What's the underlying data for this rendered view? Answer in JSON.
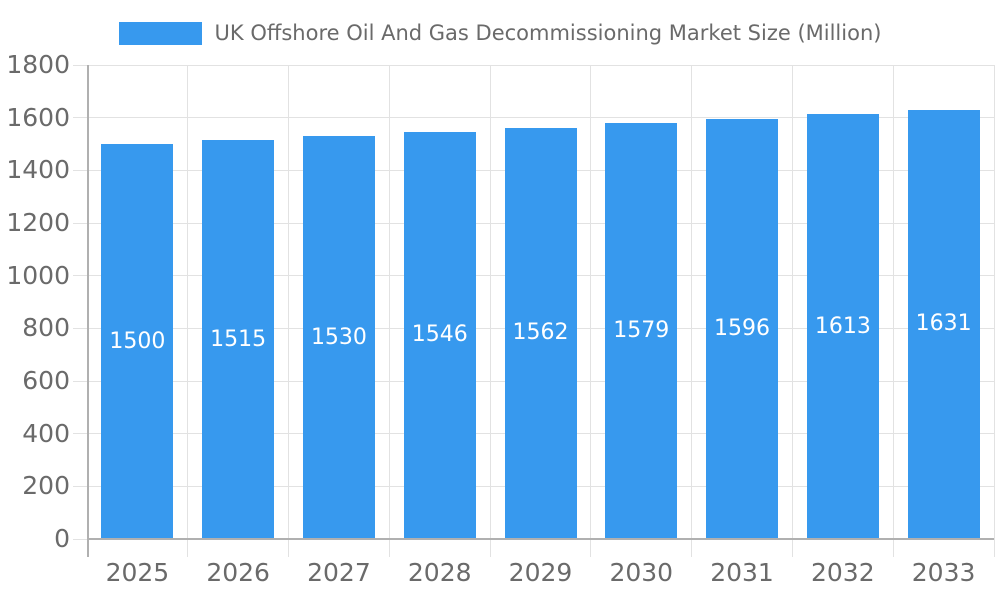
{
  "chart_data": {
    "type": "bar",
    "title": "UK Offshore Oil And Gas Decommissioning Market Size (Million)",
    "legend_position": "top",
    "categories": [
      "2025",
      "2026",
      "2027",
      "2028",
      "2029",
      "2030",
      "2031",
      "2032",
      "2033"
    ],
    "values": [
      1500,
      1515,
      1530,
      1546,
      1562,
      1579,
      1596,
      1613,
      1631
    ],
    "bar_value_labels": [
      "1500",
      "1515",
      "1530",
      "1546",
      "1562",
      "1579",
      "1596",
      "1613",
      "1631"
    ],
    "xlabel": "",
    "ylabel": "",
    "ylim": [
      0,
      1800
    ],
    "y_tick_step": 200,
    "y_tick_labels": [
      "0",
      "200",
      "400",
      "600",
      "800",
      "1000",
      "1200",
      "1400",
      "1600",
      "1800"
    ],
    "grid": true,
    "colors": {
      "bar": "#3799EE",
      "bar_label": "#FFFFFF",
      "grid": "#E2E2E2",
      "axis": "#B0B0B0",
      "tick_label": "#6A6A6A",
      "title": "#6A6A6A",
      "background": "#FFFFFF"
    }
  }
}
